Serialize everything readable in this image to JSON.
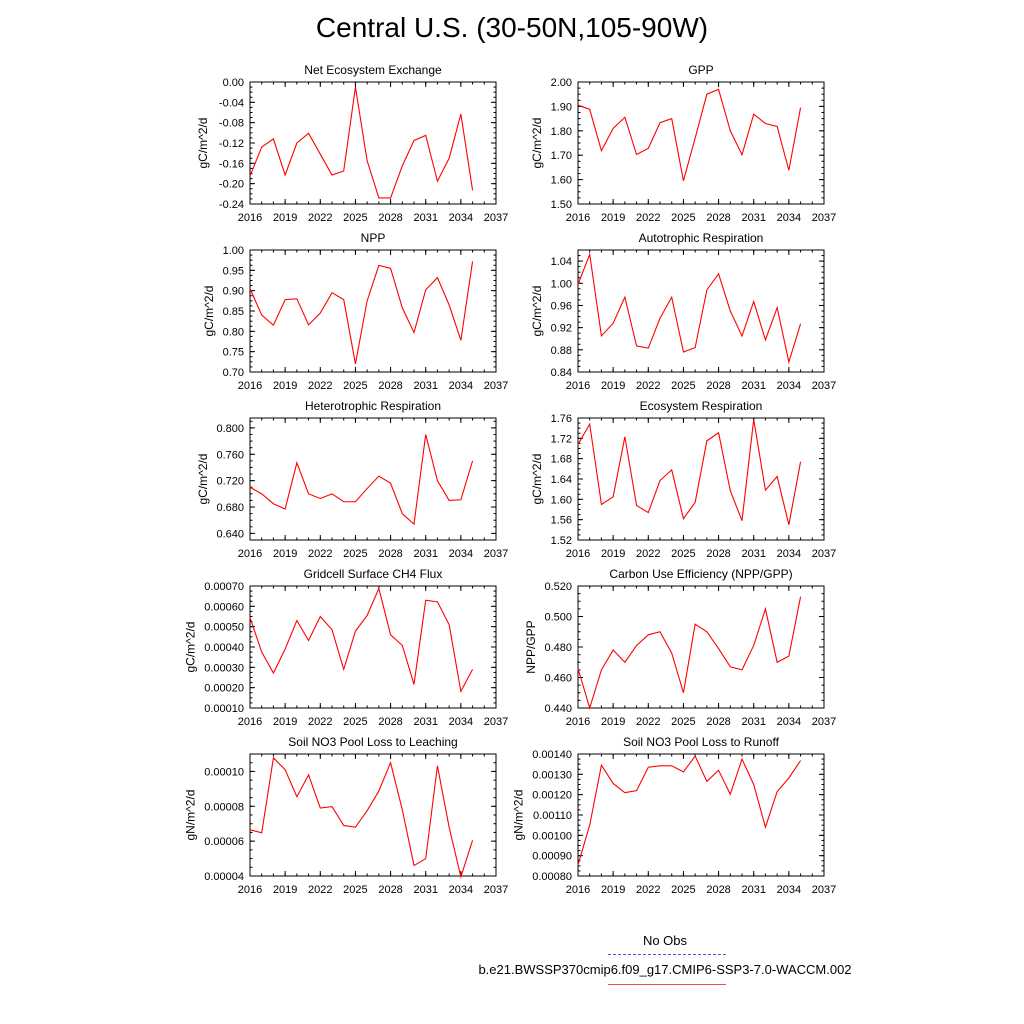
{
  "title": "Central U.S. (30-50N,105-90W)",
  "legend": {
    "obs_label": "No Obs",
    "obs_color": "#5555cc",
    "case_label": "b.e21.BWSSP370cmip6.f09_g17.CMIP6-SSP3-7.0-WACCM.002",
    "case_color": "#e05050"
  },
  "chart_data": [
    {
      "type": "line",
      "title": "Net Ecosystem Exchange",
      "ylabel": "gC/m^2/d",
      "xlim": [
        2016,
        2037
      ],
      "ylim": [
        -0.24,
        0.0
      ],
      "xticks": [
        "2016",
        "2019",
        "2022",
        "2025",
        "2028",
        "2031",
        "2034",
        "2037"
      ],
      "yticks": [
        "-0.24",
        "-0.20",
        "-0.16",
        "-0.12",
        "-0.08",
        "-0.04",
        "0.00"
      ],
      "line_color": "#ff0000",
      "x": [
        2016,
        2017,
        2018,
        2019,
        2020,
        2021,
        2022,
        2023,
        2024,
        2025,
        2026,
        2027,
        2028,
        2029,
        2030,
        2031,
        2032,
        2033,
        2034,
        2035
      ],
      "values": [
        -0.185,
        -0.128,
        -0.112,
        -0.183,
        -0.12,
        -0.101,
        -0.142,
        -0.183,
        -0.175,
        -0.01,
        -0.155,
        -0.228,
        -0.228,
        -0.165,
        -0.115,
        -0.105,
        -0.195,
        -0.15,
        -0.063,
        -0.213
      ]
    },
    {
      "type": "line",
      "title": "GPP",
      "ylabel": "gC/m^2/d",
      "xlim": [
        2016,
        2037
      ],
      "ylim": [
        1.5,
        2.0
      ],
      "xticks": [
        "2016",
        "2019",
        "2022",
        "2025",
        "2028",
        "2031",
        "2034",
        "2037"
      ],
      "yticks": [
        "1.50",
        "1.60",
        "1.70",
        "1.80",
        "1.90",
        "2.00"
      ],
      "line_color": "#ff0000",
      "x": [
        2016,
        2017,
        2018,
        2019,
        2020,
        2021,
        2022,
        2023,
        2024,
        2025,
        2026,
        2027,
        2028,
        2029,
        2030,
        2031,
        2032,
        2033,
        2034,
        2035
      ],
      "values": [
        1.905,
        1.888,
        1.718,
        1.81,
        1.855,
        1.703,
        1.728,
        1.833,
        1.85,
        1.595,
        1.77,
        1.95,
        1.97,
        1.8,
        1.702,
        1.868,
        1.83,
        1.818,
        1.638,
        1.895
      ]
    },
    {
      "type": "line",
      "title": "NPP",
      "ylabel": "gC/m^2/d",
      "xlim": [
        2016,
        2037
      ],
      "ylim": [
        0.7,
        1.0
      ],
      "xticks": [
        "2016",
        "2019",
        "2022",
        "2025",
        "2028",
        "2031",
        "2034",
        "2037"
      ],
      "yticks": [
        "0.70",
        "0.75",
        "0.80",
        "0.85",
        "0.90",
        "0.95",
        "1.00"
      ],
      "line_color": "#ff0000",
      "x": [
        2016,
        2017,
        2018,
        2019,
        2020,
        2021,
        2022,
        2023,
        2024,
        2025,
        2026,
        2027,
        2028,
        2029,
        2030,
        2031,
        2032,
        2033,
        2034,
        2035
      ],
      "values": [
        0.905,
        0.84,
        0.815,
        0.878,
        0.88,
        0.816,
        0.845,
        0.895,
        0.878,
        0.72,
        0.875,
        0.962,
        0.955,
        0.858,
        0.797,
        0.902,
        0.932,
        0.865,
        0.778,
        0.972
      ]
    },
    {
      "type": "line",
      "title": "Autotrophic Respiration",
      "ylabel": "gC/m^2/d",
      "xlim": [
        2016,
        2037
      ],
      "ylim": [
        0.84,
        1.06
      ],
      "xticks": [
        "2016",
        "2019",
        "2022",
        "2025",
        "2028",
        "2031",
        "2034",
        "2037"
      ],
      "yticks": [
        "0.84",
        "0.88",
        "0.92",
        "0.96",
        "1.00",
        "1.04"
      ],
      "line_color": "#ff0000",
      "x": [
        2016,
        2017,
        2018,
        2019,
        2020,
        2021,
        2022,
        2023,
        2024,
        2025,
        2026,
        2027,
        2028,
        2029,
        2030,
        2031,
        2032,
        2033,
        2034,
        2035
      ],
      "values": [
        0.998,
        1.052,
        0.905,
        0.928,
        0.975,
        0.887,
        0.883,
        0.937,
        0.975,
        0.876,
        0.884,
        0.988,
        1.017,
        0.95,
        0.905,
        0.967,
        0.898,
        0.956,
        0.858,
        0.927
      ]
    },
    {
      "type": "line",
      "title": "Heterotrophic Respiration",
      "ylabel": "gC/m^2/d",
      "xlim": [
        2016,
        2037
      ],
      "ylim": [
        0.63,
        0.815
      ],
      "xticks": [
        "2016",
        "2019",
        "2022",
        "2025",
        "2028",
        "2031",
        "2034",
        "2037"
      ],
      "yticks": [
        "0.640",
        "0.680",
        "0.720",
        "0.760",
        "0.800"
      ],
      "line_color": "#ff0000",
      "x": [
        2016,
        2017,
        2018,
        2019,
        2020,
        2021,
        2022,
        2023,
        2024,
        2025,
        2026,
        2027,
        2028,
        2029,
        2030,
        2031,
        2032,
        2033,
        2034,
        2035
      ],
      "values": [
        0.71,
        0.7,
        0.685,
        0.677,
        0.747,
        0.7,
        0.693,
        0.7,
        0.688,
        0.688,
        0.708,
        0.727,
        0.716,
        0.67,
        0.654,
        0.79,
        0.72,
        0.69,
        0.691,
        0.75
      ]
    },
    {
      "type": "line",
      "title": "Ecosystem Respiration",
      "ylabel": "gC/m^2/d",
      "xlim": [
        2016,
        2037
      ],
      "ylim": [
        1.52,
        1.76
      ],
      "xticks": [
        "2016",
        "2019",
        "2022",
        "2025",
        "2028",
        "2031",
        "2034",
        "2037"
      ],
      "yticks": [
        "1.52",
        "1.56",
        "1.60",
        "1.64",
        "1.68",
        "1.72",
        "1.76"
      ],
      "line_color": "#ff0000",
      "x": [
        2016,
        2017,
        2018,
        2019,
        2020,
        2021,
        2022,
        2023,
        2024,
        2025,
        2026,
        2027,
        2028,
        2029,
        2030,
        2031,
        2032,
        2033,
        2034,
        2035
      ],
      "values": [
        1.708,
        1.748,
        1.59,
        1.605,
        1.723,
        1.588,
        1.574,
        1.637,
        1.658,
        1.562,
        1.594,
        1.715,
        1.731,
        1.617,
        1.558,
        1.757,
        1.618,
        1.645,
        1.55,
        1.674
      ]
    },
    {
      "type": "line",
      "title": "Gridcell Surface CH4 Flux",
      "ylabel": "gC/m^2/d",
      "xlim": [
        2016,
        2037
      ],
      "ylim": [
        0.0001,
        0.0007
      ],
      "xticks": [
        "2016",
        "2019",
        "2022",
        "2025",
        "2028",
        "2031",
        "2034",
        "2037"
      ],
      "yticks": [
        "0.00010",
        "0.00020",
        "0.00030",
        "0.00040",
        "0.00050",
        "0.00060",
        "0.00070"
      ],
      "line_color": "#ff0000",
      "x": [
        2016,
        2017,
        2018,
        2019,
        2020,
        2021,
        2022,
        2023,
        2024,
        2025,
        2026,
        2027,
        2028,
        2029,
        2030,
        2031,
        2032,
        2033,
        2034,
        2035
      ],
      "values": [
        0.000545,
        0.000375,
        0.000272,
        0.00039,
        0.00053,
        0.000432,
        0.00055,
        0.000485,
        0.00029,
        0.000478,
        0.000555,
        0.000688,
        0.00046,
        0.000408,
        0.000216,
        0.00063,
        0.000622,
        0.00051,
        0.000182,
        0.00029
      ]
    },
    {
      "type": "line",
      "title": "Carbon Use Efficiency (NPP/GPP)",
      "ylabel": "NPP/GPP",
      "xlim": [
        2016,
        2037
      ],
      "ylim": [
        0.44,
        0.52
      ],
      "xticks": [
        "2016",
        "2019",
        "2022",
        "2025",
        "2028",
        "2031",
        "2034",
        "2037"
      ],
      "yticks": [
        "0.440",
        "0.460",
        "0.480",
        "0.500",
        "0.520"
      ],
      "line_color": "#ff0000",
      "x": [
        2016,
        2017,
        2018,
        2019,
        2020,
        2021,
        2022,
        2023,
        2024,
        2025,
        2026,
        2027,
        2028,
        2029,
        2030,
        2031,
        2032,
        2033,
        2034,
        2035
      ],
      "values": [
        0.466,
        0.44,
        0.465,
        0.478,
        0.47,
        0.481,
        0.488,
        0.49,
        0.476,
        0.45,
        0.495,
        0.49,
        0.479,
        0.467,
        0.465,
        0.481,
        0.505,
        0.47,
        0.474,
        0.513
      ]
    },
    {
      "type": "line",
      "title": "Soil NO3 Pool Loss to Leaching",
      "ylabel": "gN/m^2/d",
      "xlim": [
        2016,
        2037
      ],
      "ylim": [
        4e-05,
        0.00011
      ],
      "xticks": [
        "2016",
        "2019",
        "2022",
        "2025",
        "2028",
        "2031",
        "2034",
        "2037"
      ],
      "yticks": [
        "0.00004",
        "0.00006",
        "0.00008",
        "0.00010"
      ],
      "line_color": "#ff0000",
      "x": [
        2016,
        2017,
        2018,
        2019,
        2020,
        2021,
        2022,
        2023,
        2024,
        2025,
        2026,
        2027,
        2028,
        2029,
        2030,
        2031,
        2032,
        2033,
        2034,
        2035
      ],
      "values": [
        6.65e-05,
        6.48e-05,
        0.0001078,
        0.000101,
        8.55e-05,
        9.8e-05,
        7.9e-05,
        7.98e-05,
        6.9e-05,
        6.8e-05,
        7.75e-05,
        8.88e-05,
        0.000105,
        7.8e-05,
        4.6e-05,
        5e-05,
        0.0001032,
        6.8e-05,
        3.95e-05,
        6.05e-05
      ]
    },
    {
      "type": "line",
      "title": "Soil NO3 Pool Loss to Runoff",
      "ylabel": "gN/m^2/d",
      "xlim": [
        2016,
        2037
      ],
      "ylim": [
        0.0008,
        0.0014
      ],
      "xticks": [
        "2016",
        "2019",
        "2022",
        "2025",
        "2028",
        "2031",
        "2034",
        "2037"
      ],
      "yticks": [
        "0.00080",
        "0.00090",
        "0.00100",
        "0.00110",
        "0.00120",
        "0.00130",
        "0.00140"
      ],
      "line_color": "#ff0000",
      "x": [
        2016,
        2017,
        2018,
        2019,
        2020,
        2021,
        2022,
        2023,
        2024,
        2025,
        2026,
        2027,
        2028,
        2029,
        2030,
        2031,
        2032,
        2033,
        2034,
        2035
      ],
      "values": [
        0.000855,
        0.00105,
        0.001345,
        0.001255,
        0.00121,
        0.00122,
        0.001335,
        0.001342,
        0.001342,
        0.001312,
        0.00139,
        0.001265,
        0.00132,
        0.001202,
        0.001375,
        0.00125,
        0.00104,
        0.001215,
        0.001282,
        0.001368
      ]
    }
  ]
}
